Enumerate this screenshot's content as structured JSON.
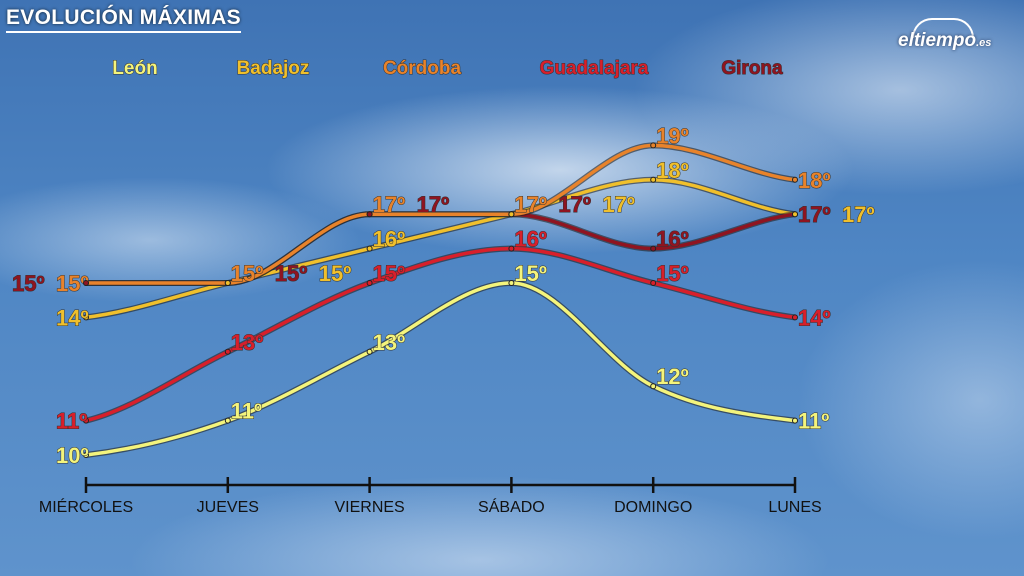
{
  "title": "EVOLUCIÓN MÁXIMAS",
  "logo": {
    "text": "eltiempo",
    "suffix": ".es"
  },
  "chart_data": {
    "type": "line",
    "categories": [
      "MIÉRCOLES",
      "JUEVES",
      "VIERNES",
      "SÁBADO",
      "DOMINGO",
      "LUNES"
    ],
    "unit": "º",
    "legend_position": "top",
    "grid": false,
    "ylim": [
      10,
      19
    ],
    "series": [
      {
        "name": "León",
        "color": "#f4f47c",
        "values": [
          10,
          11,
          13,
          15,
          12,
          11
        ]
      },
      {
        "name": "Badajoz",
        "color": "#f0c02c",
        "values": [
          14,
          15,
          16,
          17,
          18,
          17
        ]
      },
      {
        "name": "Córdoba",
        "color": "#e8832b",
        "values": [
          15,
          15,
          17,
          17,
          19,
          18
        ]
      },
      {
        "name": "Guadalajara",
        "color": "#d81f2b",
        "values": [
          11,
          13,
          15,
          16,
          15,
          14
        ]
      },
      {
        "name": "Girona",
        "color": "#8f1420",
        "values": [
          15,
          15,
          17,
          17,
          16,
          17
        ]
      }
    ]
  }
}
